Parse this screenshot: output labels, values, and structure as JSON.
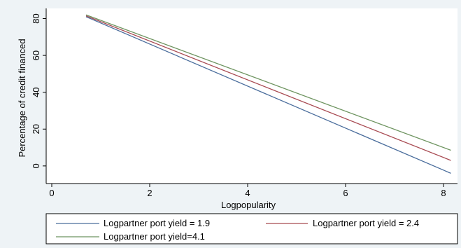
{
  "chart_data": {
    "type": "line",
    "xlabel": "Logpopularity",
    "ylabel": "Percentage of credit financed",
    "xlim": [
      0,
      8.2
    ],
    "ylim": [
      -5,
      84
    ],
    "xticks": [
      0,
      2,
      4,
      6,
      8
    ],
    "yticks": [
      0,
      20,
      40,
      60,
      80
    ],
    "grid": false,
    "legend_position": "bottom",
    "series": [
      {
        "name": "Logpartner port yield = 1.9",
        "color": "#4a6d9c",
        "x": [
          0.7,
          8.15
        ],
        "y": [
          81,
          -4
        ]
      },
      {
        "name": "Logpartner port yield = 2.4",
        "color": "#a84a52",
        "x": [
          0.7,
          8.15
        ],
        "y": [
          81.5,
          3
        ]
      },
      {
        "name": "Logpartner port yield=4.1",
        "color": "#6e9460",
        "x": [
          0.7,
          8.15
        ],
        "y": [
          82,
          8.5
        ]
      }
    ]
  }
}
